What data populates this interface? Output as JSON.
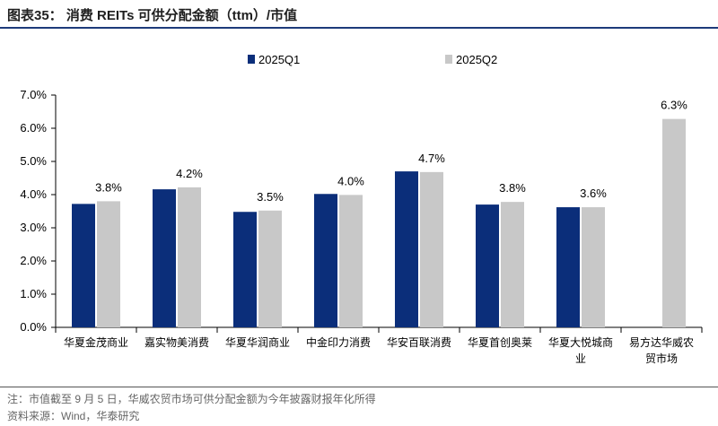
{
  "header": {
    "title": "图表35：  消费 REITs 可供分配金额（ttm）/市值"
  },
  "footer": {
    "note": "注：市值截至 9 月 5 日，华威农贸市场可供分配金额为今年披露财报年化所得",
    "source": "资料来源：Wind，华泰研究"
  },
  "colors": {
    "q1": "#0b2e7a",
    "q2": "#c8c8c8",
    "rule": "#1d3b7a"
  },
  "chart_data": {
    "type": "bar",
    "title": "消费 REITs 可供分配金额（ttm）/市值",
    "categories": [
      [
        "华夏金茂商业"
      ],
      [
        "嘉实物美消费"
      ],
      [
        "华夏华润商业"
      ],
      [
        "中金印力消费"
      ],
      [
        "华安百联消费"
      ],
      [
        "华夏首创奥莱"
      ],
      [
        "华夏大悦城商",
        "业"
      ],
      [
        "易方达华威农",
        "贸市场"
      ]
    ],
    "series": [
      {
        "name": "2025Q1",
        "values": [
          3.72,
          4.16,
          3.48,
          4.02,
          4.7,
          3.7,
          3.62,
          null
        ]
      },
      {
        "name": "2025Q2",
        "values": [
          3.8,
          4.22,
          3.52,
          3.99,
          4.68,
          3.78,
          3.62,
          6.28
        ]
      }
    ],
    "data_labels": [
      "3.8%",
      "4.2%",
      "3.5%",
      "4.0%",
      "4.7%",
      "3.8%",
      "3.6%",
      "6.3%"
    ],
    "y_ticks": [
      "0.0%",
      "1.0%",
      "2.0%",
      "3.0%",
      "4.0%",
      "5.0%",
      "6.0%",
      "7.0%"
    ],
    "ylim": [
      0,
      7
    ],
    "legend_position": "top-center",
    "grid": false
  }
}
